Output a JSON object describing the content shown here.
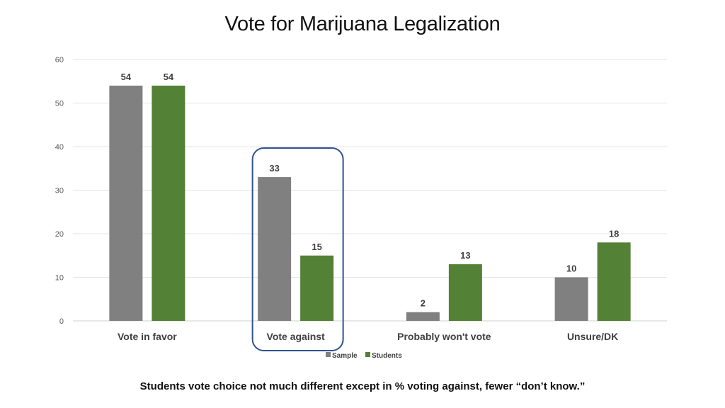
{
  "title": "Vote for Marijuana Legalization",
  "caption": "Students vote choice not much different except in % voting against, fewer “don’t know.”",
  "colors": {
    "sample": "#808080",
    "students": "#538135",
    "highlight": "#2F528F"
  },
  "chart_data": {
    "type": "bar",
    "title": "Vote for Marijuana Legalization",
    "categories": [
      "Vote in favor",
      "Vote against",
      "Probably won't vote",
      "Unsure/DK"
    ],
    "series": [
      {
        "name": "Sample",
        "values": [
          54,
          33,
          2,
          10
        ]
      },
      {
        "name": "Students",
        "values": [
          54,
          15,
          13,
          18
        ]
      }
    ],
    "ylim": [
      0,
      60
    ],
    "yticks": [
      0,
      10,
      20,
      30,
      40,
      50,
      60
    ],
    "grid": true,
    "legend": "bottom",
    "highlighted_category": "Vote against"
  }
}
